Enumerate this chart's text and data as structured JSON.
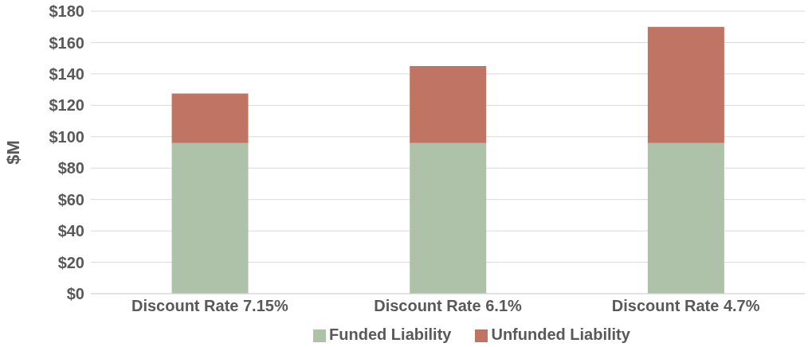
{
  "chart_data": {
    "type": "bar",
    "stacked": true,
    "ylabel": "$M",
    "categories": [
      "Discount Rate 7.15%",
      "Discount Rate 6.1%",
      "Discount Rate 4.7%"
    ],
    "series": [
      {
        "name": "Funded Liability",
        "color": "#adc2a9",
        "values": [
          96,
          96,
          96
        ]
      },
      {
        "name": "Unfunded Liability",
        "color": "#c07463",
        "values": [
          31.5,
          49,
          74
        ]
      }
    ],
    "ylim": [
      0,
      180
    ],
    "yticks": [
      {
        "value": 0,
        "label": "$0"
      },
      {
        "value": 20,
        "label": "$20"
      },
      {
        "value": 40,
        "label": "$40"
      },
      {
        "value": 60,
        "label": "$60"
      },
      {
        "value": 80,
        "label": "$80"
      },
      {
        "value": 100,
        "label": "$100"
      },
      {
        "value": 120,
        "label": "$120"
      },
      {
        "value": 140,
        "label": "$140"
      },
      {
        "value": 160,
        "label": "$160"
      },
      {
        "value": 180,
        "label": "$180"
      }
    ],
    "grid": "y",
    "legend": "bottom"
  }
}
